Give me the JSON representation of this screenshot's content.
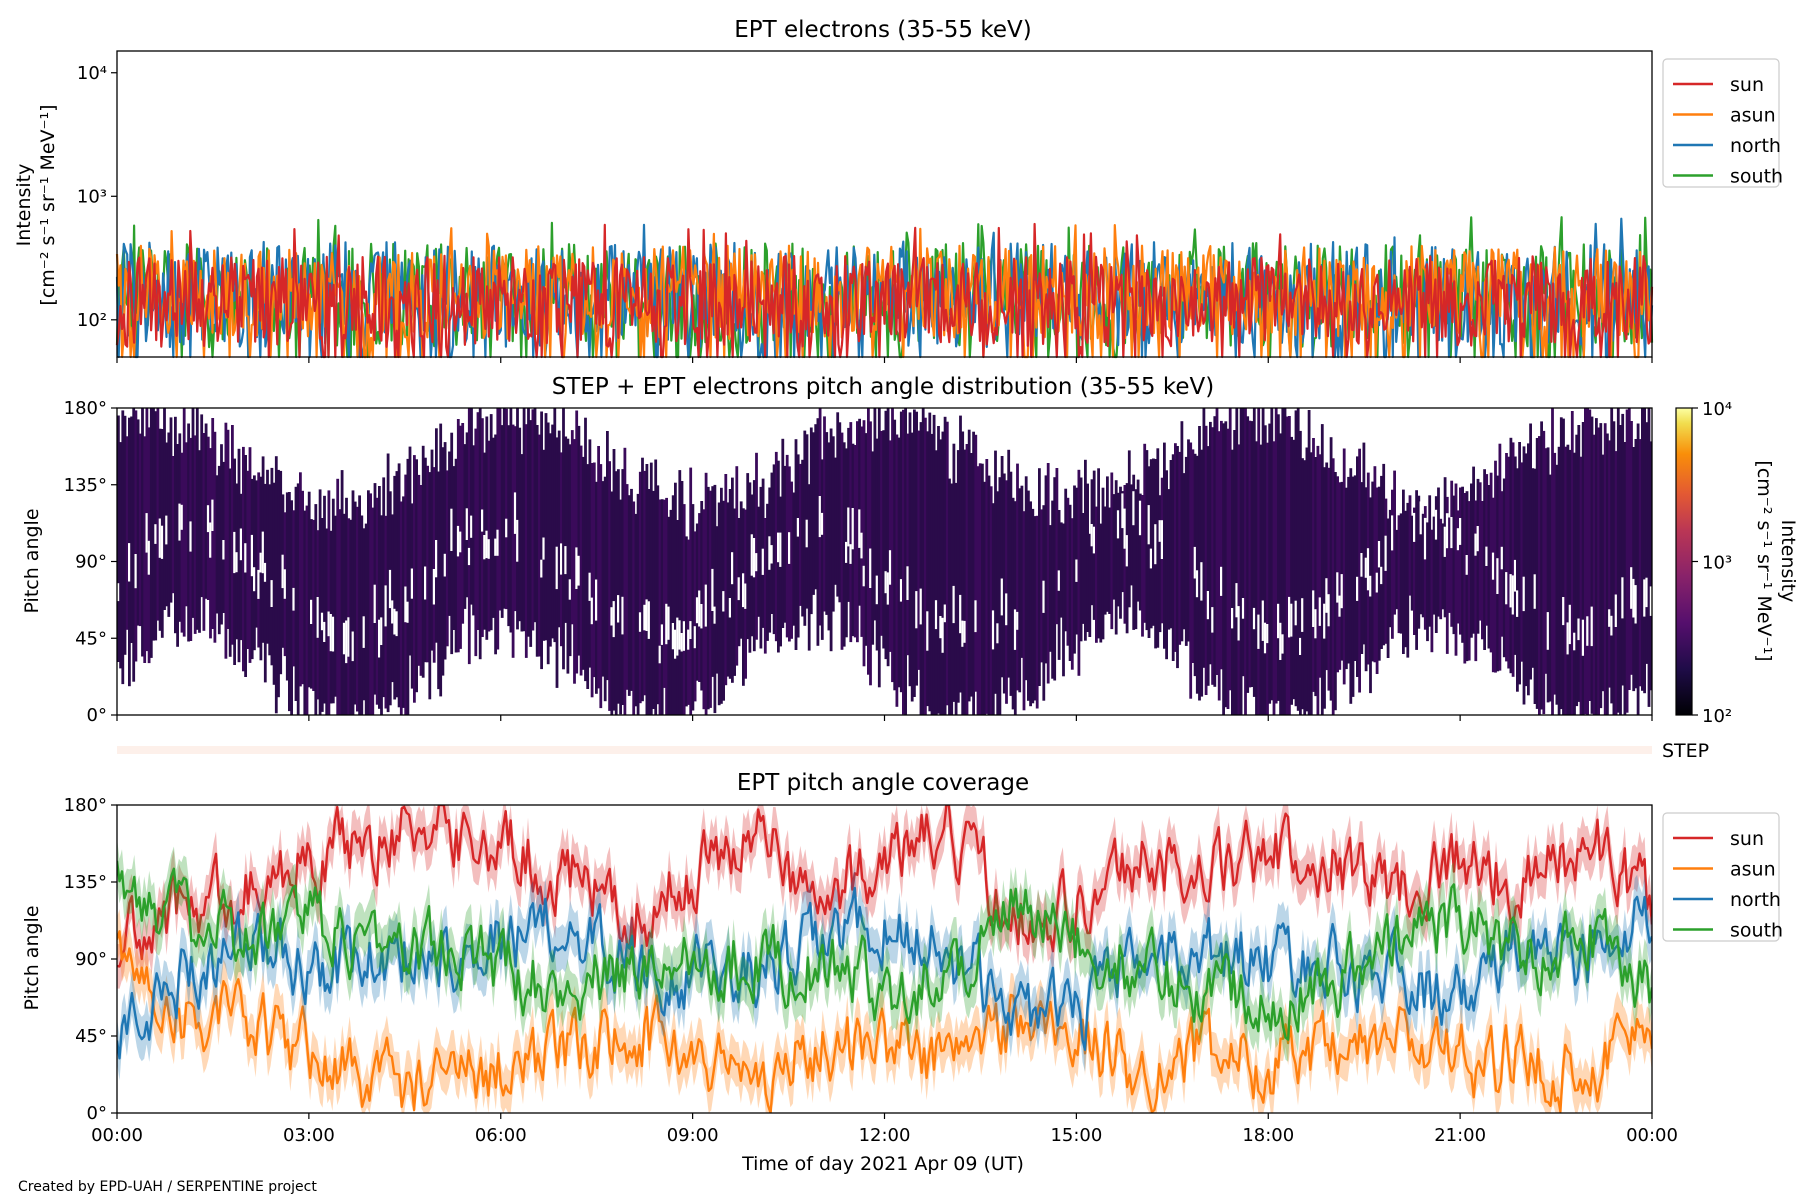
{
  "footer": "Created by EPD-UAH / SERPENTINE project",
  "colors": {
    "sun": "#d62728",
    "asun": "#ff7f0e",
    "north": "#1f77b4",
    "south": "#2ca02c"
  },
  "chart_data": [
    {
      "type": "line",
      "title": "EPT electrons (35-55 keV)",
      "ylabel": [
        "Intensity",
        "[cm⁻² s⁻¹ sr⁻¹ MeV⁻¹]"
      ],
      "yscale": "log",
      "ylim": [
        50,
        15000
      ],
      "yticks": [
        {
          "value": 100,
          "label": "10²"
        },
        {
          "value": 1000,
          "label": "10³"
        },
        {
          "value": 10000,
          "label": "10⁴"
        }
      ],
      "xlim": [
        0,
        24
      ],
      "legend": "upper-right-outside",
      "series": [
        {
          "name": "sun",
          "typical_range": [
            60,
            330
          ],
          "peak": 600
        },
        {
          "name": "asun",
          "typical_range": [
            70,
            400
          ],
          "peak": 640
        },
        {
          "name": "north",
          "typical_range": [
            60,
            430
          ],
          "peak": 660
        },
        {
          "name": "south",
          "typical_range": [
            60,
            420
          ],
          "peak": 690
        }
      ]
    },
    {
      "type": "heatmap",
      "title": "STEP + EPT electrons pitch angle distribution (35-55 keV)",
      "ylabel": "Pitch angle",
      "ylim": [
        0,
        180
      ],
      "yticks": [
        "0°",
        "45°",
        "90°",
        "135°",
        "180°"
      ],
      "xlim": [
        0,
        24
      ],
      "colorbar": {
        "label": [
          "Intensity",
          "[cm⁻² s⁻¹ sr⁻¹ MeV⁻¹]"
        ],
        "scale": "log",
        "range": [
          100,
          10000
        ],
        "ticks": [
          {
            "value": 100,
            "label": "10²"
          },
          {
            "value": 1000,
            "label": "10³"
          },
          {
            "value": 10000,
            "label": "10⁴"
          }
        ],
        "cmap": "inferno"
      },
      "strip_label": "STEP"
    },
    {
      "type": "line",
      "title": "EPT pitch angle coverage",
      "ylabel": "Pitch angle",
      "ylim": [
        0,
        180
      ],
      "yticks": [
        "0°",
        "45°",
        "90°",
        "135°",
        "180°"
      ],
      "xlabel": "Time of day 2021 Apr 09 (UT)",
      "xlim": [
        0,
        24
      ],
      "xticks": [
        "00:00",
        "03:00",
        "06:00",
        "09:00",
        "12:00",
        "15:00",
        "18:00",
        "21:00",
        "00:00"
      ],
      "legend": "upper-right-outside",
      "series": [
        {
          "name": "sun",
          "x": [
            0,
            1,
            2,
            3,
            4,
            5,
            6,
            7,
            8,
            9,
            10,
            11,
            12,
            13,
            14,
            15,
            16,
            17,
            18,
            19,
            20,
            21,
            22,
            23,
            24
          ],
          "y": [
            95,
            120,
            130,
            150,
            160,
            170,
            155,
            140,
            110,
            140,
            165,
            120,
            150,
            160,
            120,
            120,
            150,
            140,
            150,
            150,
            130,
            150,
            130,
            160,
            120
          ]
        },
        {
          "name": "asun",
          "x": [
            0,
            1,
            2,
            3,
            4,
            5,
            6,
            7,
            8,
            9,
            10,
            11,
            12,
            13,
            14,
            15,
            16,
            17,
            18,
            19,
            20,
            21,
            22,
            23,
            24
          ],
          "y": [
            90,
            60,
            50,
            35,
            20,
            15,
            30,
            30,
            50,
            35,
            20,
            40,
            40,
            30,
            55,
            45,
            25,
            35,
            30,
            30,
            45,
            30,
            30,
            25,
            55
          ]
        },
        {
          "name": "north",
          "x": [
            0,
            1,
            2,
            3,
            4,
            5,
            6,
            7,
            8,
            9,
            10,
            11,
            12,
            13,
            14,
            15,
            16,
            17,
            18,
            19,
            20,
            21,
            22,
            23,
            24
          ],
          "y": [
            40,
            80,
            100,
            85,
            90,
            95,
            100,
            110,
            90,
            80,
            80,
            100,
            110,
            95,
            60,
            55,
            90,
            95,
            90,
            85,
            80,
            65,
            100,
            90,
            115
          ]
        },
        {
          "name": "south",
          "x": [
            0,
            1,
            2,
            3,
            4,
            5,
            6,
            7,
            8,
            9,
            10,
            11,
            12,
            13,
            14,
            15,
            16,
            17,
            18,
            19,
            20,
            21,
            22,
            23,
            24
          ],
          "y": [
            150,
            110,
            100,
            110,
            100,
            95,
            85,
            75,
            80,
            95,
            90,
            85,
            75,
            80,
            120,
            95,
            85,
            75,
            70,
            75,
            100,
            115,
            90,
            110,
            70
          ]
        }
      ]
    }
  ]
}
